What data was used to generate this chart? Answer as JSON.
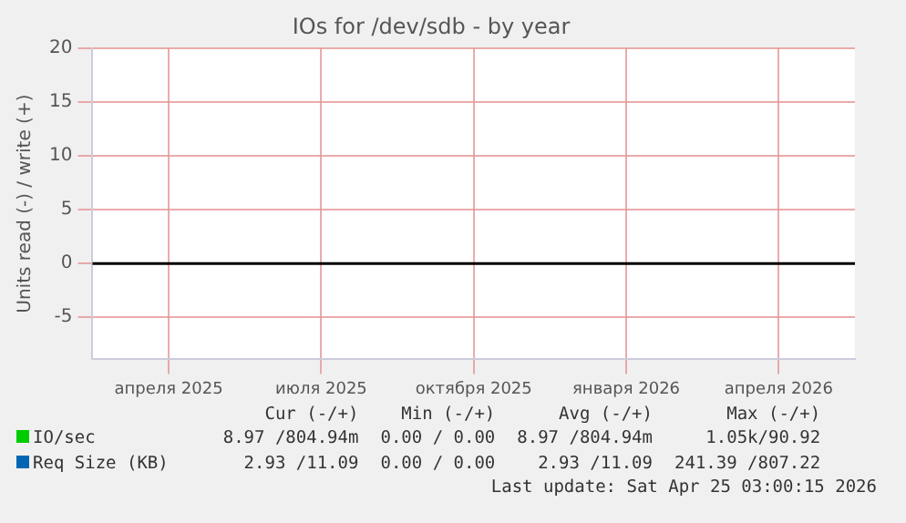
{
  "chart_data": {
    "type": "line",
    "title": "IOs for /dev/sdb - by year",
    "ylabel": "Units read (-) / write (+)",
    "categories": [
      "апреля 2025",
      "июля 2025",
      "октября 2025",
      "января 2026",
      "апреля 2026"
    ],
    "ylim": [
      -8.9,
      20
    ],
    "yticks": [
      -5,
      0,
      5,
      10,
      15,
      20
    ],
    "grid": true,
    "legend": "bottom",
    "ref_lines": [
      {
        "axis": "y",
        "value": 0,
        "color": "#000000"
      }
    ],
    "series": [
      {
        "name": "IO/sec",
        "color": "#00cc00",
        "values": [
          null,
          null,
          null,
          null,
          null
        ]
      },
      {
        "name": "Req Size (KB)",
        "color": "#0066b3",
        "values": [
          null,
          null,
          null,
          null,
          null
        ]
      }
    ],
    "annotations": [
      "Cur (-/+)",
      "Min (-/+)",
      "Avg (-/+)",
      "Max (-/+)",
      "8.97 /804.94m",
      "0.00 / 0.00",
      "8.97 /804.94m",
      "1.05k/90.92",
      "2.93 /11.09",
      "0.00 / 0.00",
      "2.93 /11.09",
      "241.39 /807.22",
      "Last update: Sat Apr 25 03:00:15 2026"
    ]
  }
}
